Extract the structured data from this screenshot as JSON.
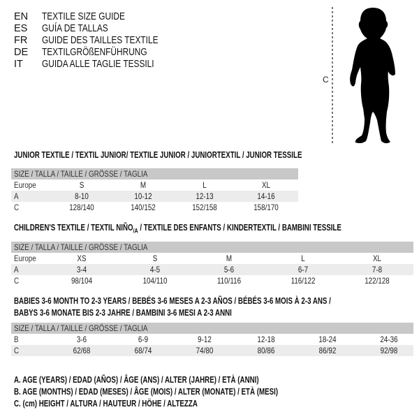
{
  "languages": [
    {
      "code": "EN",
      "title": "TEXTILE SIZE GUIDE"
    },
    {
      "code": "ES",
      "title": "GUÍA DE TALLAS"
    },
    {
      "code": "FR",
      "title": "GUIDE DES TAILLES TEXTILE"
    },
    {
      "code": "DE",
      "title": "TEXTILGRÖßENFÜHRUNG"
    },
    {
      "code": "IT",
      "title": "GUIDA ALLE TAGLIE TESSILI"
    }
  ],
  "figure": {
    "measure_label": "C",
    "icon": "child-silhouette"
  },
  "junior": {
    "heading": "JUNIOR TEXTILE / TEXTIL JUNIOR/ TEXTILE JUNIOR / JUNIORTEXTIL / JUNIOR TESSILE",
    "size_header": "SIZE / TALLA / TAILLE / GRÖSSE / TAGLIA",
    "rows": [
      {
        "label": "Europe",
        "values": [
          "S",
          "M",
          "L",
          "XL"
        ]
      },
      {
        "label": "A",
        "values": [
          "8-10",
          "10-12",
          "12-13",
          "14-16"
        ]
      },
      {
        "label": "C",
        "values": [
          "128/140",
          "140/152",
          "152/158",
          "158/170"
        ]
      }
    ]
  },
  "children": {
    "heading_pre": "CHILDREN'S TEXTILE / TEXTIL NIÑO",
    "heading_sub": "/A",
    "heading_post": " / TEXTILE DES ENFANTS / KINDERTEXTIL / BAMBINI TESSILE",
    "size_header": "SIZE / TALLA / TAILLE / GRÖSSE / TAGLIA",
    "rows": [
      {
        "label": "Europe",
        "values": [
          "XS",
          "S",
          "M",
          "L",
          "XL"
        ]
      },
      {
        "label": "A",
        "values": [
          "3-4",
          "4-5",
          "5-6",
          "6-7",
          "7-8"
        ]
      },
      {
        "label": "C",
        "values": [
          "98/104",
          "104/110",
          "110/116",
          "116/122",
          "122/128"
        ]
      }
    ]
  },
  "babies": {
    "heading_line1": "BABIES 3-6 MONTH TO 2-3 YEARS / BEBÉS 3-6 MESES A 2-3 AÑOS / BÉBÉS 3-6 MOIS À 2-3 ANS /",
    "heading_line2": "BABYS 3-6 MONATE BIS 2-3 JAHRE / BAMBINI 3-6 MESI A 2-3 ANNI",
    "size_header": "SIZE / TALLA / TAILLE / GRÖSSE / TAGLIA",
    "rows": [
      {
        "label": "B",
        "values": [
          "3-6",
          "6-9",
          "9-12",
          "12-18",
          "18-24",
          "24-36"
        ]
      },
      {
        "label": "C",
        "values": [
          "62/68",
          "68/74",
          "74/80",
          "80/86",
          "86/92",
          "92/98"
        ]
      }
    ]
  },
  "legend": [
    "A. AGE (YEARS) / EDAD (AÑOS) / ÂGE (ANS) / ALTER (JAHRE) / ETÀ (ANNI)",
    "B. AGE (MONTHS) / EDAD (MESES) / ÂGE (MOIS) / ALTER (MONATE) / ETÀ (MESI)",
    "C. (cm) HEIGHT / ALTURA / HAUTEUR / HÖHE / ALTEZZA"
  ]
}
